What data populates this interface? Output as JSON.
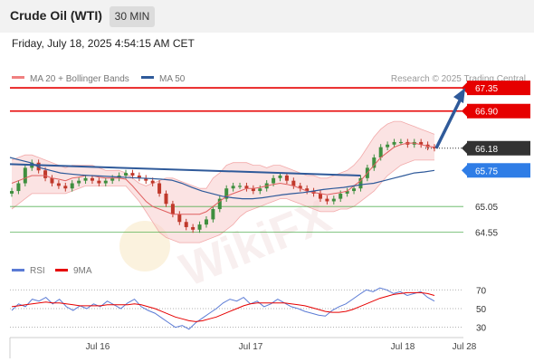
{
  "header": {
    "title": "Crude Oil (WTI)",
    "timeframe": "30 MIN"
  },
  "timestamp": "Friday, July 18, 2025 4:54:15 AM CET",
  "copyright": "Research © 2025 Trading Central",
  "watermark": "WikiFX",
  "colors": {
    "resistance": "#e60000",
    "support": "#33a133",
    "ma50": "#2f5a9a",
    "ma20": "#f08080",
    "rsi": "#5b7bd5",
    "rsi_ma": "#e60000",
    "price_tag": "#333333",
    "ma50_tag": "#2f7de6"
  },
  "chart_data": [
    {
      "type": "candlestick",
      "legend": [
        {
          "label": "MA 20 + Bollinger Bands",
          "color": "#f08080"
        },
        {
          "label": "MA 50",
          "color": "#2f5a9a"
        }
      ],
      "ylim": [
        64.0,
        67.65
      ],
      "levels": [
        {
          "value": 67.35,
          "label": "67.35",
          "kind": "resistance"
        },
        {
          "value": 66.9,
          "label": "66.90",
          "kind": "resistance"
        },
        {
          "value": 66.18,
          "label": "66.18",
          "kind": "last-price"
        },
        {
          "value": 65.75,
          "label": "65.75",
          "kind": "ma50"
        },
        {
          "value": 65.05,
          "label": "65.05",
          "kind": "support"
        },
        {
          "value": 64.55,
          "label": "64.55",
          "kind": "support"
        }
      ],
      "close_series": [
        65.35,
        65.5,
        65.8,
        65.9,
        65.75,
        65.6,
        65.5,
        65.45,
        65.4,
        65.5,
        65.55,
        65.6,
        65.55,
        65.5,
        65.55,
        65.6,
        65.65,
        65.7,
        65.65,
        65.6,
        65.55,
        65.5,
        65.3,
        65.1,
        64.9,
        64.75,
        64.65,
        64.6,
        64.7,
        64.8,
        65.0,
        65.2,
        65.4,
        65.45,
        65.45,
        65.4,
        65.35,
        65.4,
        65.5,
        65.6,
        65.65,
        65.55,
        65.45,
        65.4,
        65.35,
        65.3,
        65.2,
        65.15,
        65.2,
        65.3,
        65.35,
        65.4,
        65.6,
        65.8,
        66.0,
        66.2,
        66.25,
        66.3,
        66.3,
        66.25,
        66.3,
        66.25,
        66.2,
        66.18
      ],
      "bb_upper": [
        65.95,
        66.0,
        66.05,
        66.05,
        66.0,
        65.95,
        65.9,
        65.85,
        65.8,
        65.85,
        65.85,
        65.85,
        65.85,
        65.8,
        65.75,
        65.75,
        65.75,
        65.7,
        65.6,
        65.5,
        65.45,
        65.5,
        65.55,
        65.6,
        65.6,
        65.55,
        65.5,
        65.45,
        65.4,
        65.4,
        65.6,
        65.7,
        65.85,
        65.9,
        65.9,
        65.9,
        65.85,
        65.85,
        65.8,
        65.85,
        65.85,
        65.8,
        65.75,
        65.7,
        65.65,
        65.65,
        65.6,
        65.6,
        65.65,
        65.7,
        65.75,
        65.85,
        66.0,
        66.2,
        66.4,
        66.55,
        66.65,
        66.7,
        66.7,
        66.65,
        66.6,
        66.55,
        66.5,
        66.45
      ],
      "bb_lower": [
        65.0,
        65.1,
        65.2,
        65.3,
        65.3,
        65.3,
        65.3,
        65.3,
        65.3,
        65.35,
        65.4,
        65.45,
        65.45,
        65.45,
        65.45,
        65.45,
        65.45,
        65.45,
        65.3,
        65.15,
        64.95,
        64.75,
        64.55,
        64.45,
        64.4,
        64.35,
        64.35,
        64.35,
        64.35,
        64.4,
        64.45,
        64.5,
        64.6,
        64.7,
        64.85,
        64.95,
        65.0,
        65.05,
        65.1,
        65.15,
        65.2,
        65.2,
        65.15,
        65.1,
        65.05,
        65.0,
        64.95,
        64.95,
        64.95,
        65.0,
        65.0,
        65.05,
        65.15,
        65.25,
        65.35,
        65.5,
        65.65,
        65.75,
        65.85,
        65.9,
        65.95,
        65.95,
        65.95,
        65.95
      ],
      "ma20": [
        65.5,
        65.55,
        65.6,
        65.65,
        65.65,
        65.65,
        65.6,
        65.58,
        65.55,
        65.6,
        65.62,
        65.65,
        65.65,
        65.62,
        65.6,
        65.6,
        65.6,
        65.58,
        65.45,
        65.3,
        65.15,
        65.05,
        65.0,
        64.95,
        64.9,
        64.9,
        64.9,
        64.9,
        64.9,
        64.95,
        65.05,
        65.15,
        65.25,
        65.3,
        65.35,
        65.4,
        65.4,
        65.42,
        65.45,
        65.48,
        65.5,
        65.48,
        65.45,
        65.4,
        65.35,
        65.32,
        65.3,
        65.28,
        65.3,
        65.32,
        65.35,
        65.45,
        65.55,
        65.7,
        65.85,
        66.0,
        66.1,
        66.2,
        66.25,
        66.28,
        66.28,
        66.25,
        66.22,
        66.2
      ],
      "ma50": [
        66.0,
        65.95,
        65.9,
        65.8,
        65.75,
        65.7,
        65.68,
        65.66,
        65.65,
        65.64,
        65.63,
        65.62,
        65.61,
        65.6,
        65.59,
        65.58,
        65.56,
        65.5,
        65.42,
        65.35,
        65.3,
        65.25,
        65.22,
        65.2,
        65.2,
        65.22,
        65.25,
        65.28,
        65.3,
        65.32,
        65.35,
        65.38,
        65.4,
        65.42,
        65.45,
        65.48,
        65.5,
        65.55,
        65.6,
        65.65,
        65.7,
        65.72,
        65.75
      ],
      "trendline": {
        "from": 65.87,
        "to": 65.65
      },
      "projection": {
        "from": 66.18,
        "to": 67.35
      }
    },
    {
      "type": "line",
      "legend": [
        {
          "label": "RSI",
          "color": "#5b7bd5"
        },
        {
          "label": "9MA",
          "color": "#e60000"
        }
      ],
      "ylim": [
        20,
        78
      ],
      "y_ticks": [
        "70",
        "50",
        "30"
      ],
      "reference_lines": [
        70,
        50,
        30
      ],
      "rsi": [
        48,
        55,
        52,
        60,
        58,
        62,
        55,
        60,
        52,
        48,
        53,
        50,
        55,
        52,
        58,
        54,
        50,
        56,
        60,
        52,
        48,
        45,
        40,
        35,
        30,
        32,
        28,
        35,
        40,
        45,
        50,
        56,
        60,
        58,
        62,
        55,
        58,
        52,
        55,
        60,
        56,
        52,
        50,
        47,
        45,
        43,
        42,
        48,
        52,
        55,
        60,
        65,
        70,
        68,
        72,
        70,
        66,
        68,
        64,
        66,
        68,
        62,
        58
      ],
      "ma9": [
        52,
        53,
        54,
        55,
        56,
        57,
        56,
        56,
        55,
        54,
        53,
        53,
        53,
        53,
        54,
        54,
        54,
        54,
        55,
        54,
        52,
        50,
        47,
        44,
        41,
        39,
        37,
        36,
        37,
        39,
        41,
        44,
        47,
        50,
        53,
        55,
        56,
        56,
        56,
        56,
        56,
        55,
        54,
        53,
        51,
        49,
        47,
        46,
        46,
        47,
        49,
        52,
        55,
        58,
        61,
        63,
        65,
        66,
        67,
        67,
        67,
        66,
        64
      ]
    }
  ],
  "x_axis": {
    "ticks": [
      "Jul 16",
      "Jul 17",
      "Jul 18",
      "Jul 28"
    ]
  }
}
